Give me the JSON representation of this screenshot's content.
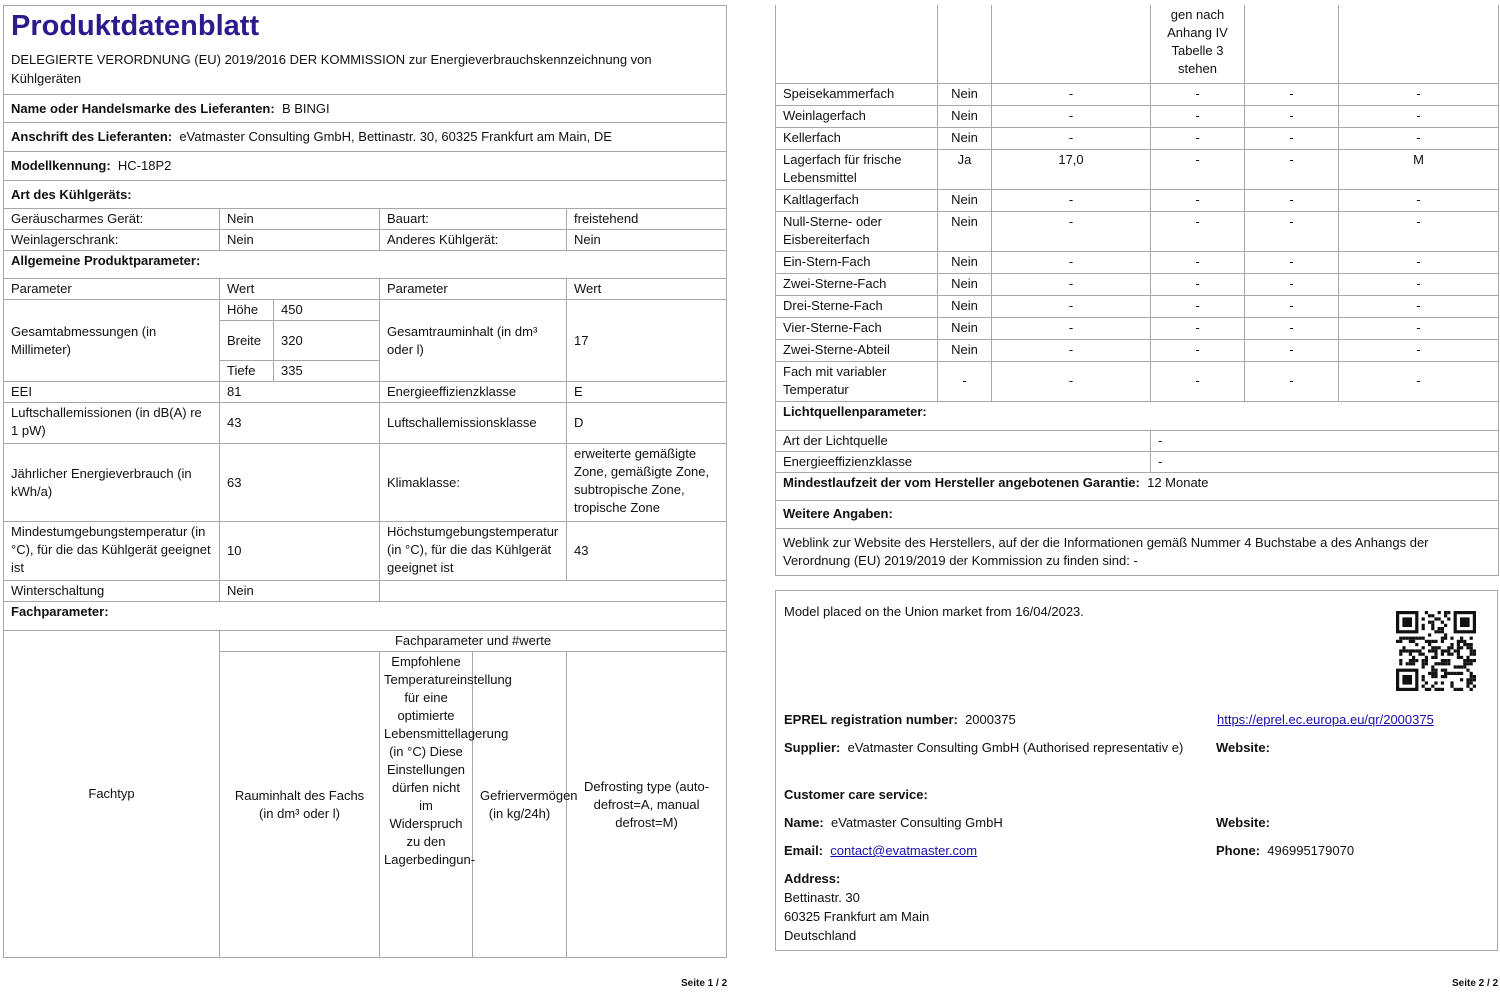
{
  "page1": {
    "title": "Produktdatenblatt",
    "subtitle": "DELEGIERTE VERORDNUNG (EU) 2019/2016 DER KOMMISSION zur Energieverbrauchskennzeichnung von Kühlgeräten",
    "supplier_label": "Name oder Handelsmarke des Lieferanten:",
    "supplier_value": "B BINGI",
    "address_label": "Anschrift des Lieferanten:",
    "address_value": "eVatmaster Consulting GmbH, Bettinastr. 30, 60325 Frankfurt am Main, DE",
    "model_label": "Modellkennung:",
    "model_value": "HC-18P2",
    "type_heading": "Art des Kühlgeräts:",
    "type_rows": [
      {
        "l1": "Geräuscharmes Gerät:",
        "v1": "Nein",
        "l2": "Bauart:",
        "v2": "freistehend"
      },
      {
        "l1": "Weinlagerschrank:",
        "v1": "Nein",
        "l2": "Anderes Kühlgerät:",
        "v2": "Nein"
      }
    ],
    "general_heading": "Allgemeine Produktparameter:",
    "col_parameter": "Parameter",
    "col_value": "Wert",
    "dimensions_label": "Gesamtabmessungen (in Millimeter)",
    "height_label": "Höhe",
    "height_value": "450",
    "width_label": "Breite",
    "width_value": "320",
    "depth_label": "Tiefe",
    "depth_value": "335",
    "volume_label": "Gesamtrauminhalt (in dm³ oder l)",
    "volume_value": "17",
    "eei_label": "EEI",
    "eei_value": "81",
    "eclass_label": "Energieeffizienzklasse",
    "eclass_value": "E",
    "noise_label": "Luftschallemissionen (in dB(A) re 1 pW)",
    "noise_value": "43",
    "noiseclass_label": "Luftschallemissionsklasse",
    "noiseclass_value": "D",
    "energy_label": "Jährlicher Energieverbrauch (in kWh/a)",
    "energy_value": "63",
    "climate_label": "Klimaklasse:",
    "climate_value": "erweiterte gemäßigte Zone, gemäßigte Zone, subtropische Zone, tropische Zone",
    "mintemp_label": "Mindestumgebungstemperatur (in °C), für die das Kühlgerät geeignet ist",
    "mintemp_value": "10",
    "maxtemp_label": "Höchstumgebungstemperatur (in °C), für die das Kühlgerät geeignet ist",
    "maxtemp_value": "43",
    "winter_label": "Winterschaltung",
    "winter_value": "Nein",
    "compartment_heading": "Fachparameter:",
    "compartment_group": "Fachparameter und #werte",
    "col_type": "Fachtyp",
    "col_volume": "Rauminhalt des Fachs (in dm³ oder l)",
    "col_temp": "Empfohlene Temperatureinstellung für eine optimierte Lebensmittellagerung (in °C) Diese Einstellungen dürfen nicht im Widerspruch zu den Lagerbedingun-",
    "col_freeze": "Gefriervermögen (in kg/24h)",
    "col_defrost": "Defrosting type (auto-defrost=A, manual defrost=M)",
    "footer": "Seite 1 / 2"
  },
  "page2": {
    "temp_continued": "gen nach Anhang IV Tabelle 3 stehen",
    "compartments": [
      {
        "name": "Speisekammerfach",
        "present": "Nein",
        "volume": "-",
        "temp": "-",
        "freeze": "-",
        "defrost": "-"
      },
      {
        "name": "Weinlagerfach",
        "present": "Nein",
        "volume": "-",
        "temp": "-",
        "freeze": "-",
        "defrost": "-"
      },
      {
        "name": "Kellerfach",
        "present": "Nein",
        "volume": "-",
        "temp": "-",
        "freeze": "-",
        "defrost": "-"
      },
      {
        "name": "Lagerfach für frische Lebensmittel",
        "present": "Ja",
        "volume": "17,0",
        "temp": "-",
        "freeze": "-",
        "defrost": "M"
      },
      {
        "name": "Kaltlagerfach",
        "present": "Nein",
        "volume": "-",
        "temp": "-",
        "freeze": "-",
        "defrost": "-"
      },
      {
        "name": "Null-Sterne- oder Eisbereiterfach",
        "present": "Nein",
        "volume": "-",
        "temp": "-",
        "freeze": "-",
        "defrost": "-"
      },
      {
        "name": "Ein-Stern-Fach",
        "present": "Nein",
        "volume": "-",
        "temp": "-",
        "freeze": "-",
        "defrost": "-"
      },
      {
        "name": "Zwei-Sterne-Fach",
        "present": "Nein",
        "volume": "-",
        "temp": "-",
        "freeze": "-",
        "defrost": "-"
      },
      {
        "name": "Drei-Sterne-Fach",
        "present": "Nein",
        "volume": "-",
        "temp": "-",
        "freeze": "-",
        "defrost": "-"
      },
      {
        "name": "Vier-Sterne-Fach",
        "present": "Nein",
        "volume": "-",
        "temp": "-",
        "freeze": "-",
        "defrost": "-"
      },
      {
        "name": "Zwei-Sterne-Abteil",
        "present": "Nein",
        "volume": "-",
        "temp": "-",
        "freeze": "-",
        "defrost": "-"
      },
      {
        "name": "Fach mit variabler Temperatur",
        "present": "-",
        "volume": "-",
        "temp": "-",
        "freeze": "-",
        "defrost": "-"
      }
    ],
    "light_heading": "Lichtquellenparameter:",
    "light_type_label": "Art der Lichtquelle",
    "light_type_value": "-",
    "light_class_label": "Energieeffizienzklasse",
    "light_class_value": "-",
    "warranty_label": "Mindestlaufzeit der vom Hersteller angebotenen Garantie:",
    "warranty_value": "12 Monate",
    "more_heading": "Weitere Angaben:",
    "weblink_text": "Weblink zur Website des Herstellers, auf der die Informationen gemäß Nummer 4 Buchstabe a des Anhangs der Verordnung (EU) 2019/2019 der Kommission zu finden sind:  -",
    "footer": "Seite 2 / 2"
  },
  "eprel": {
    "placed": "Model placed on the Union market from 16/04/2023.",
    "reg_label": "EPREL registration number:",
    "reg_value": "2000375",
    "url": "https://eprel.ec.europa.eu/qr/2000375",
    "supplier_label": "Supplier:",
    "supplier_value": "eVatmaster Consulting GmbH (Authorised representativ e)",
    "website_label": "Website:",
    "care_label": "Customer care service:",
    "name_label": "Name:",
    "name_value": "eVatmaster Consulting GmbH",
    "website2_label": "Website:",
    "email_label": "Email:",
    "email_value": "contact@evatmaster.com",
    "phone_label": "Phone:",
    "phone_value": "496995179070",
    "address_label": "Address:",
    "address_lines": [
      "Bettinastr. 30",
      "60325 Frankfurt am Main",
      "Deutschland"
    ],
    "qr_icon": "qr-code-icon"
  },
  "colors": {
    "title": "#2e1a8c",
    "link": "#1a0dab",
    "border": "#a8a8a8"
  }
}
